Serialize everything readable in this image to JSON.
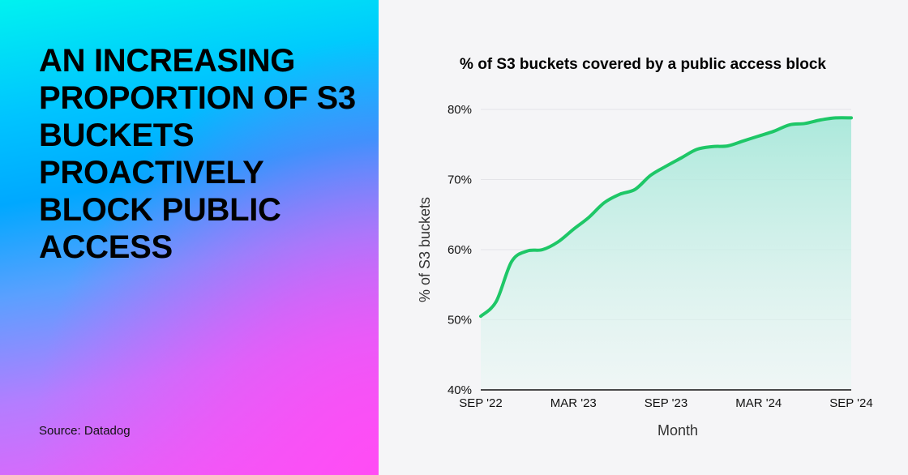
{
  "headline": "AN INCREASING PROPORTION OF S3 BUCKETS PROACTIVELY BLOCK PUBLIC ACCESS",
  "source": "Source: Datadog",
  "colors": {
    "line": "#1ec767",
    "fill": "#a8e8da",
    "background": "#f5f5f7"
  },
  "chart_data": {
    "type": "area",
    "title": "% of S3 buckets covered by a public access block",
    "xlabel": "Month",
    "ylabel": "% of S3 buckets",
    "ylim": [
      40,
      80
    ],
    "yticks": [
      "40%",
      "50%",
      "60%",
      "70%",
      "80%"
    ],
    "xticks": [
      "SEP '22",
      "MAR '23",
      "SEP '23",
      "MAR '24",
      "SEP '24"
    ],
    "grid": true,
    "x": [
      "2022-09",
      "2022-10",
      "2022-11",
      "2022-12",
      "2023-01",
      "2023-02",
      "2023-03",
      "2023-04",
      "2023-05",
      "2023-06",
      "2023-07",
      "2023-08",
      "2023-09",
      "2023-10",
      "2023-11",
      "2023-12",
      "2024-01",
      "2024-02",
      "2024-03",
      "2024-04",
      "2024-05",
      "2024-06",
      "2024-07",
      "2024-08",
      "2024-09"
    ],
    "values": [
      50.5,
      52.6,
      58.3,
      59.8,
      60.0,
      61.1,
      62.9,
      64.6,
      66.7,
      67.9,
      68.6,
      70.6,
      71.9,
      73.1,
      74.3,
      74.7,
      74.8,
      75.5,
      76.2,
      76.9,
      77.8,
      78.0,
      78.5,
      78.8,
      78.8
    ]
  }
}
